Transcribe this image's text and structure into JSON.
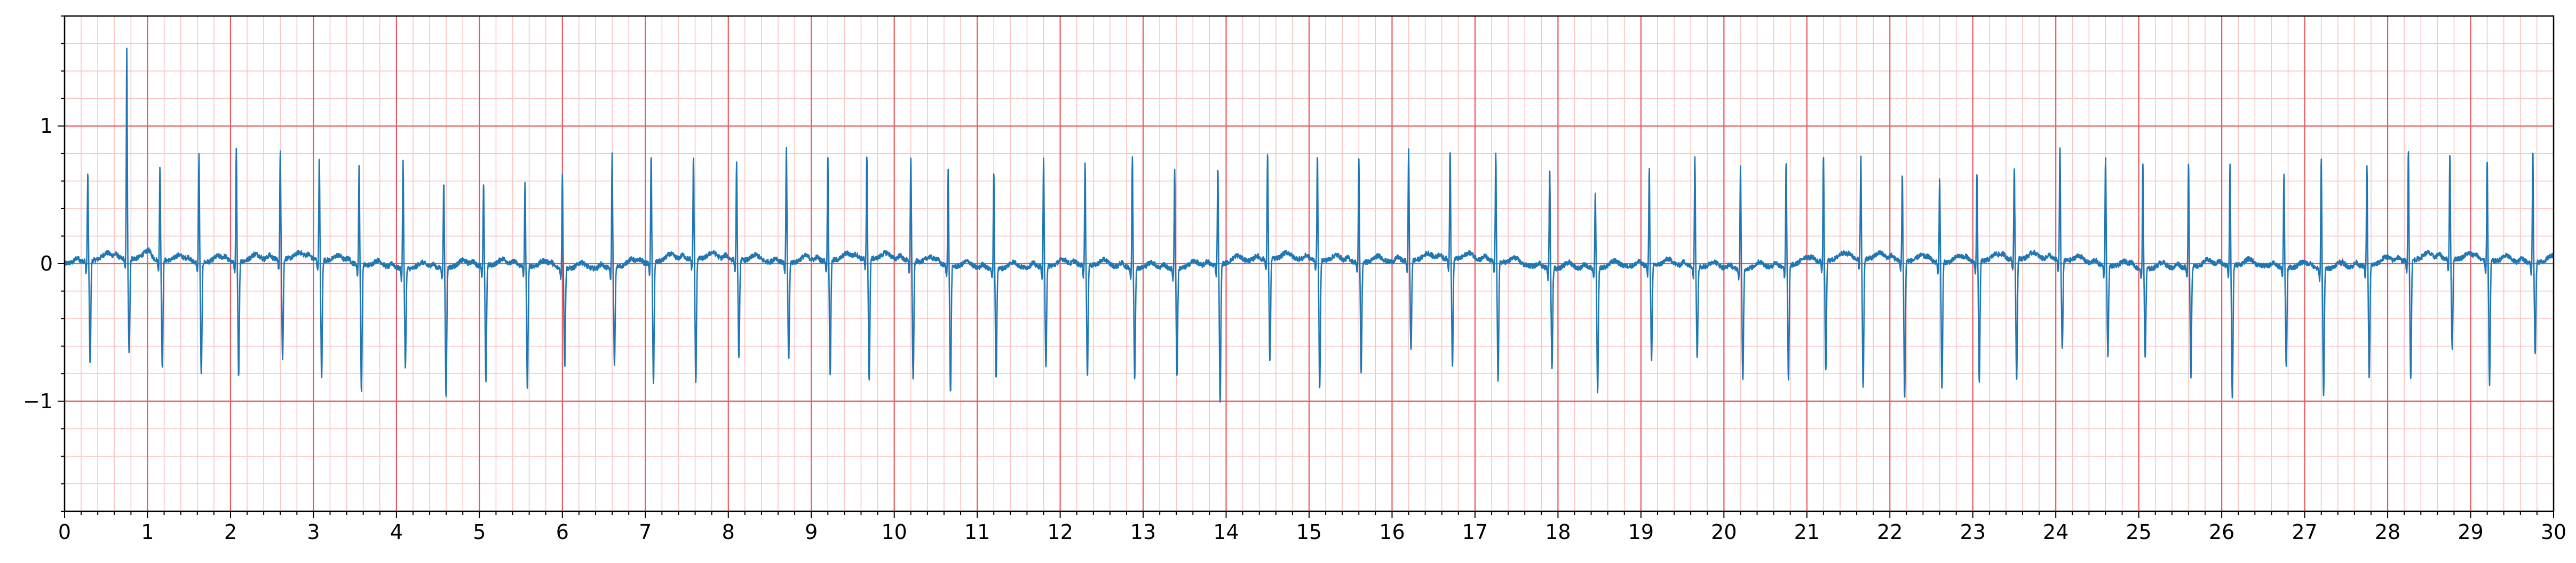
{
  "chart_data": {
    "type": "line",
    "title": "",
    "xlabel": "",
    "ylabel": "",
    "xlim": [
      0,
      30
    ],
    "ylim": [
      -1.8,
      1.8
    ],
    "x_major_step": 1,
    "x_minor_step": 0.2,
    "y_major_step": 1,
    "y_minor_step": 0.2,
    "xticks": [
      "0",
      "1",
      "2",
      "3",
      "4",
      "5",
      "6",
      "7",
      "8",
      "9",
      "10",
      "11",
      "12",
      "13",
      "14",
      "15",
      "16",
      "17",
      "18",
      "19",
      "20",
      "21",
      "22",
      "23",
      "24",
      "25",
      "26",
      "27",
      "28",
      "29",
      "30"
    ],
    "yticks": [
      {
        "value": 1,
        "label": "1"
      },
      {
        "value": 0,
        "label": "0"
      },
      {
        "value": -1,
        "label": "−1"
      }
    ],
    "grid": true,
    "colors": {
      "signal": "#1f77b4",
      "segment": "#d62728",
      "major_grid": "#e8595f",
      "minor_grid": "#f9c4c4",
      "axes": "#000000"
    },
    "series": [
      {
        "peak_times": [
          0.28,
          0.75,
          1.15,
          1.62,
          2.07,
          2.6,
          3.07,
          3.55,
          4.08,
          4.57,
          5.05,
          5.55,
          6.0,
          6.6,
          7.07,
          7.58,
          8.1,
          8.7,
          9.2,
          9.67,
          10.2,
          10.65,
          11.2,
          11.8,
          12.3,
          12.87,
          13.38,
          13.9,
          14.5,
          15.1,
          15.6,
          16.2,
          16.7,
          17.25,
          17.9,
          18.45,
          19.1,
          19.65,
          20.2,
          20.75,
          21.2,
          21.65,
          22.15,
          22.6,
          23.05,
          23.5,
          24.05,
          24.6,
          25.05,
          25.6,
          26.1,
          26.75,
          27.2,
          27.75,
          28.25,
          28.75,
          29.2,
          29.75
        ],
        "peak_amplitudes": [
          0.63,
          1.52,
          0.68,
          0.78,
          0.81,
          0.79,
          0.73,
          0.73,
          0.79,
          0.63,
          0.59,
          0.61,
          0.68,
          0.82,
          0.79,
          0.75,
          0.7,
          0.84,
          0.77,
          0.76,
          0.75,
          0.7,
          0.7,
          0.79,
          0.75,
          0.81,
          0.71,
          0.71,
          0.78,
          0.75,
          0.75,
          0.8,
          0.8,
          0.8,
          0.7,
          0.55,
          0.7,
          0.8,
          0.75,
          0.77,
          0.77,
          0.76,
          0.62,
          0.61,
          0.63,
          0.67,
          0.83,
          0.8,
          0.77,
          0.77,
          0.74,
          0.68,
          0.8,
          0.74,
          0.8,
          0.78,
          0.74,
          0.8
        ],
        "trough_amplitudes": [
          -0.75,
          -0.7,
          -0.78,
          -0.83,
          -0.82,
          -0.72,
          -0.86,
          -0.92,
          -0.71,
          -0.94,
          -0.84,
          -0.9,
          -0.72,
          -0.72,
          -0.88,
          -0.9,
          -0.72,
          -0.72,
          -0.82,
          -0.9,
          -0.87,
          -0.93,
          -0.8,
          -0.73,
          -0.81,
          -0.8,
          -0.78,
          -1.0,
          -0.75,
          -0.94,
          -0.8,
          -0.66,
          -0.78,
          -0.86,
          -0.72,
          -0.92,
          -0.68,
          -0.66,
          -0.82,
          -0.84,
          -0.81,
          -0.95,
          -0.99,
          -0.93,
          -0.88,
          -0.87,
          -0.65,
          -0.65,
          -0.65,
          -0.8,
          -0.97,
          -0.72,
          -0.93,
          -0.81,
          -0.87,
          -0.65,
          -0.9,
          -0.68
        ]
      }
    ]
  }
}
